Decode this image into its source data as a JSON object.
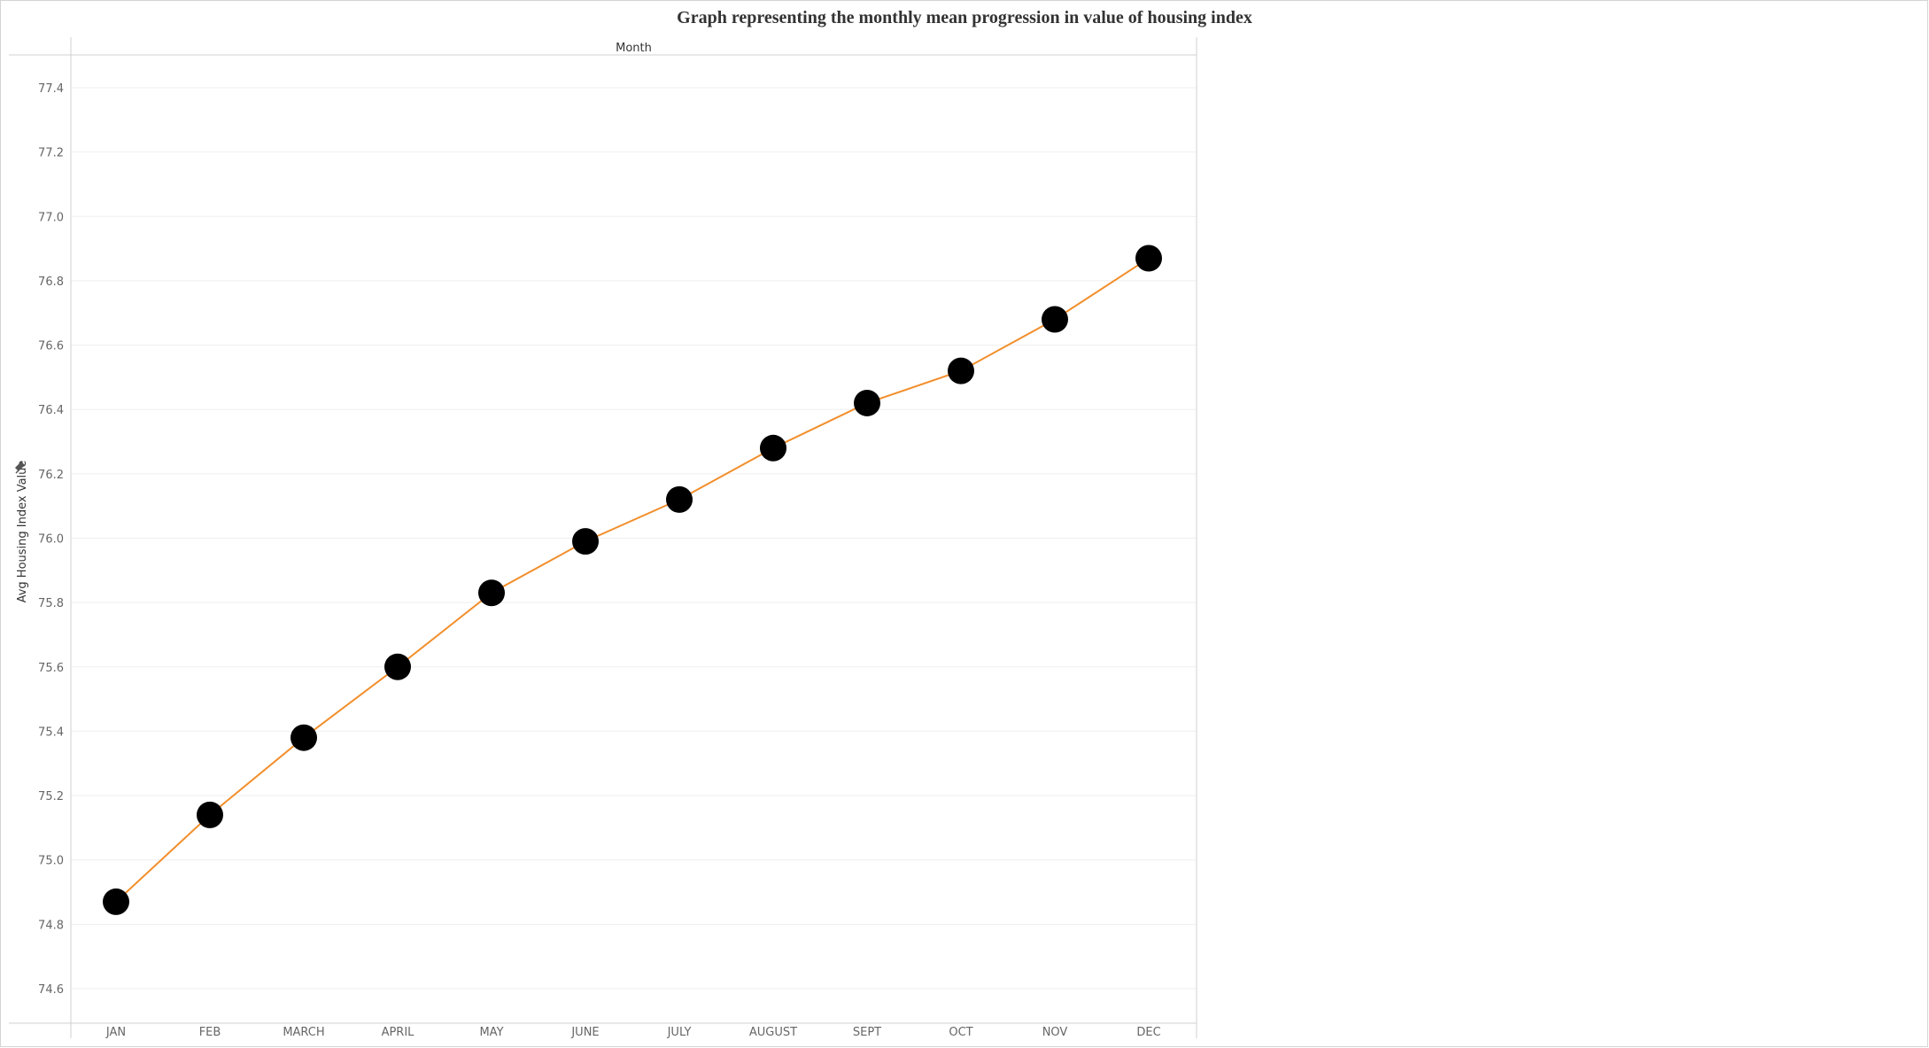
{
  "chart_data": {
    "type": "line",
    "title": "Graph representing the monthly mean progression in value of housing index",
    "column_header": "Month",
    "ylabel": "Avg Housing Index Value",
    "categories": [
      "JAN",
      "FEB",
      "MARCH",
      "APRIL",
      "MAY",
      "JUNE",
      "JULY",
      "AUGUST",
      "SEPT",
      "OCT",
      "NOV",
      "DEC"
    ],
    "series": [
      {
        "values": [
          74.87,
          75.14,
          75.38,
          75.6,
          75.83,
          75.99,
          76.12,
          76.28,
          76.42,
          76.52,
          76.68,
          76.87
        ],
        "line_color": "#f28e2b",
        "marker_color": "#000000"
      }
    ],
    "ylim": [
      74.5,
      77.5
    ],
    "yticks": [
      "74.6",
      "74.8",
      "75.0",
      "75.2",
      "75.4",
      "75.6",
      "75.8",
      "76.0",
      "76.2",
      "76.4",
      "76.6",
      "76.8",
      "77.0",
      "77.2",
      "77.4"
    ],
    "grid": true,
    "legend": "none"
  }
}
